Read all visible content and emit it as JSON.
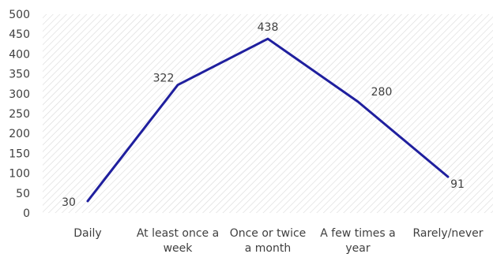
{
  "chart_data": {
    "type": "line",
    "title": "",
    "xlabel": "",
    "ylabel": "",
    "categories": [
      [
        "Daily"
      ],
      [
        "At least once a",
        "week"
      ],
      [
        "Once or twice",
        "a month"
      ],
      [
        "A few times a",
        "year"
      ],
      [
        "Rarely/never"
      ]
    ],
    "series": [
      {
        "values": [
          30,
          322,
          438,
          280,
          91
        ]
      }
    ],
    "ylim": [
      0,
      500
    ],
    "yticks": [
      0,
      50,
      100,
      150,
      200,
      250,
      300,
      350,
      400,
      450,
      500
    ],
    "grid": "hatched-background",
    "legend": "none",
    "colors": {
      "line": "#1f1f9e",
      "hatch": "#d9d9d9",
      "text": "#404040"
    }
  }
}
